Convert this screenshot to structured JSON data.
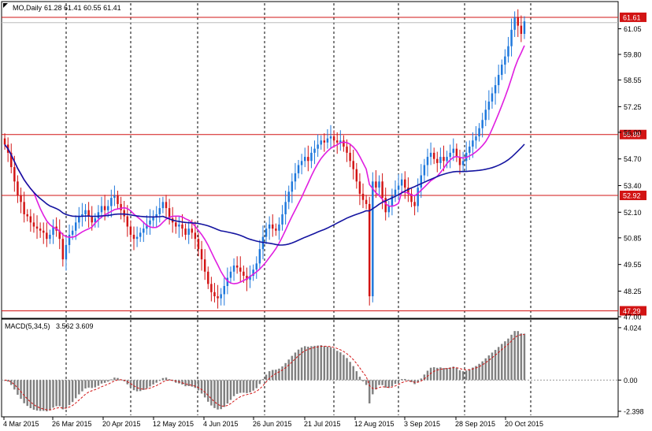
{
  "header": {
    "symbol": "MO,Daily",
    "ohlc": "61.28 61.41 60.55 61.41"
  },
  "macd_header": {
    "label": "MACD(5,34,5)",
    "values": "3.562 3.609"
  },
  "chart_data": {
    "type": "candlestick",
    "symbol": "MO",
    "timeframe": "Daily",
    "last_ohlc": {
      "open": 61.28,
      "high": 61.41,
      "low": 60.55,
      "close": 61.41
    },
    "price_axis": {
      "ylim": [
        47.0,
        62.3
      ],
      "ticks": [
        "61.05",
        "59.80",
        "58.55",
        "57.25",
        "56.00",
        "54.70",
        "53.40",
        "52.10",
        "50.85",
        "49.55",
        "48.25",
        "47.00"
      ]
    },
    "date_ticks": [
      "4 Mar 2015",
      "26 Mar 2015",
      "20 Apr 2015",
      "12 May 2015",
      "4 Jun 2015",
      "26 Jun 2015",
      "21 Jul 2015",
      "12 Aug 2015",
      "3 Sep 2015",
      "28 Sep 2015",
      "20 Oct 2015"
    ],
    "horizontal_levels": [
      {
        "value": 61.61,
        "label": "61.61"
      },
      {
        "value": 55.89,
        "label": "55.89"
      },
      {
        "value": 52.92,
        "label": "52.92"
      },
      {
        "value": 47.29,
        "label": "47.29"
      }
    ],
    "closes": [
      55.4,
      55.0,
      54.3,
      53.6,
      52.9,
      52.6,
      52.0,
      51.9,
      51.6,
      51.4,
      51.3,
      51.2,
      51.1,
      50.8,
      51.0,
      51.4,
      51.2,
      50.8,
      49.8,
      50.5,
      51.0,
      51.2,
      51.6,
      51.9,
      52.0,
      52.2,
      51.9,
      51.6,
      51.8,
      52.1,
      52.4,
      52.2,
      52.4,
      52.8,
      52.9,
      52.5,
      52.2,
      51.9,
      51.4,
      51.0,
      50.8,
      50.9,
      51.1,
      51.3,
      51.5,
      51.7,
      51.9,
      52.0,
      52.3,
      52.6,
      52.3,
      51.8,
      51.6,
      51.4,
      51.5,
      51.3,
      51.0,
      51.3,
      51.1,
      50.8,
      50.3,
      49.8,
      49.2,
      48.6,
      48.2,
      48.0,
      47.9,
      48.1,
      48.5,
      48.9,
      49.2,
      49.5,
      49.4,
      49.2,
      49.0,
      48.8,
      49.0,
      49.3,
      49.6,
      50.3,
      50.9,
      51.3,
      51.5,
      51.3,
      51.2,
      51.5,
      52.0,
      52.6,
      53.1,
      53.6,
      54.0,
      54.4,
      54.6,
      54.8,
      54.6,
      55.0,
      55.2,
      55.4,
      55.6,
      55.5,
      55.7,
      55.8,
      55.6,
      55.5,
      55.6,
      55.3,
      55.0,
      54.6,
      54.2,
      53.6,
      53.0,
      52.7,
      52.5,
      48.0,
      53.6,
      53.3,
      53.6,
      52.8,
      52.1,
      52.4,
      52.9,
      53.2,
      53.4,
      53.7,
      53.3,
      53.0,
      52.6,
      52.4,
      53.3,
      53.9,
      54.4,
      54.8,
      55.0,
      54.7,
      54.5,
      54.8,
      54.6,
      54.8,
      55.0,
      55.2,
      54.8,
      54.4,
      54.6,
      55.0,
      55.3,
      55.6,
      55.8,
      56.2,
      56.6,
      57.1,
      57.5,
      57.9,
      58.3,
      58.8,
      59.3,
      59.7,
      60.2,
      61.0,
      61.6,
      61.2,
      60.8,
      61.41
    ],
    "moving_averages": [
      {
        "period": 10,
        "color": "#e01ee0"
      },
      {
        "period": 50,
        "color": "#1414a0"
      }
    ],
    "macd_panel": {
      "label": "MACD(5,34,5)",
      "main": 3.562,
      "signal": 3.609,
      "ticks": [
        "4.024",
        "0.00",
        "-2.398"
      ],
      "ylim": [
        -2.7,
        4.5
      ]
    },
    "colors": {
      "bull": "#1e78dc",
      "bear": "#d21414",
      "level": "#d21414",
      "macd_bar": "#808080",
      "signal": "#d21414"
    }
  }
}
